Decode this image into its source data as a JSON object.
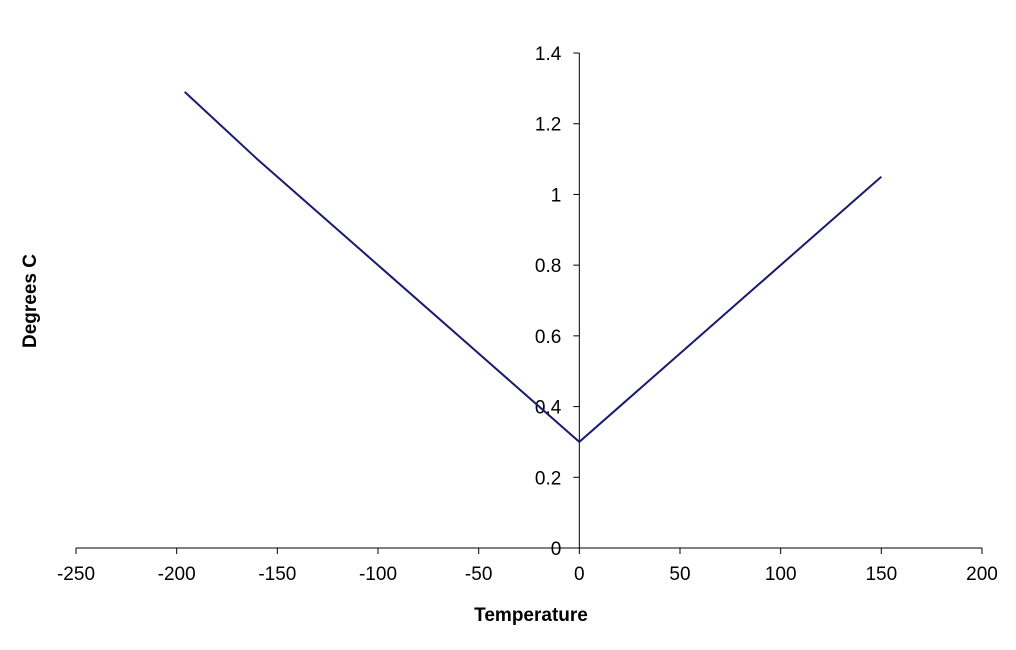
{
  "chart_data": {
    "type": "line",
    "title": "",
    "xlabel": "Temperature",
    "ylabel": "Degrees C",
    "xlim": [
      -250,
      200
    ],
    "ylim": [
      0,
      1.4
    ],
    "x_ticks": [
      -250,
      -200,
      -150,
      -100,
      -50,
      0,
      50,
      100,
      150,
      200
    ],
    "x_tick_labels": [
      "-250",
      "-200",
      "-150",
      "-100",
      "-50",
      "0",
      "50",
      "100",
      "150",
      "200"
    ],
    "y_ticks": [
      0,
      0.2,
      0.4,
      0.6,
      0.8,
      1,
      1.2,
      1.4
    ],
    "y_tick_labels": [
      "0",
      "0.2",
      "0.4",
      "0.6",
      "0.8",
      "1",
      "1.2",
      "1.4"
    ],
    "grid": false,
    "legend": "none",
    "series": [
      {
        "color": "#1a1a6e",
        "x": [
          -196,
          -160,
          -100,
          -50,
          0,
          50,
          90,
          150
        ],
        "y": [
          1.29,
          1.1,
          0.8,
          0.55,
          0.3,
          0.55,
          0.75,
          1.05
        ]
      }
    ]
  }
}
